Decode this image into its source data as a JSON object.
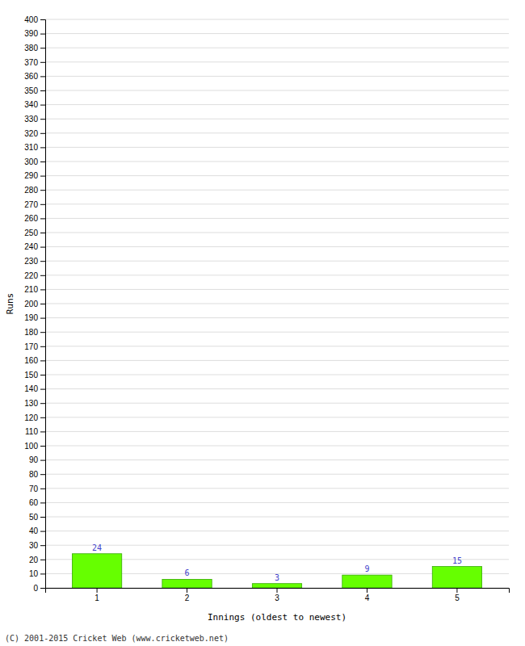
{
  "chart_data": {
    "type": "bar",
    "categories": [
      1,
      2,
      3,
      4,
      5
    ],
    "values": [
      24,
      6,
      3,
      9,
      15
    ],
    "color": "#66ff00",
    "xlabel": "Innings (oldest to newest)",
    "ylabel": "Runs",
    "ylim": [
      0,
      400
    ],
    "yticks": [
      0,
      10,
      20,
      30,
      40,
      50,
      60,
      70,
      80,
      90,
      100,
      110,
      120,
      130,
      140,
      150,
      160,
      170,
      180,
      190,
      200,
      210,
      220,
      230,
      240,
      250,
      260,
      270,
      280,
      290,
      300,
      310,
      320,
      330,
      340,
      350,
      360,
      370,
      380,
      390,
      400
    ],
    "grid": true,
    "data_labels": true,
    "annotations": [
      "(C) 2001-2015 Cricket Web (www.cricketweb.net)"
    ]
  }
}
